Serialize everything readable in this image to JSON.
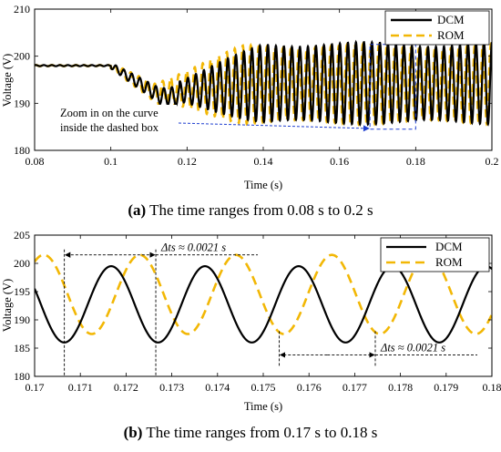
{
  "colors": {
    "dcm": "#000000",
    "rom": "#F2B705",
    "annotation": "#1f3fd0"
  },
  "chart_data": [
    {
      "type": "line",
      "xlabel": "Time (s)",
      "ylabel": "Voltage (V)",
      "xlim": [
        0.08,
        0.2
      ],
      "ylim": [
        180,
        210
      ],
      "xticks": [
        "0.08",
        "0.1",
        "0.12",
        "0.14",
        "0.16",
        "0.18",
        "0.2"
      ],
      "yticks": [
        "180",
        "190",
        "200",
        "210"
      ],
      "legend_position": "top-right",
      "series": [
        {
          "name": "DCM",
          "style": "solid",
          "color": "#000000",
          "description_points": [
            [
              0.08,
              198
            ],
            [
              0.1,
              198
            ],
            [
              0.11,
              193
            ],
            [
              0.12,
              191
            ],
            [
              0.13,
              193
            ],
            [
              0.14,
              202.5
            ],
            [
              0.16,
              201
            ],
            [
              0.2,
              199
            ]
          ],
          "oscillation": {
            "period_s": 0.0021,
            "envelope_min": 186,
            "envelope_max": 202.5,
            "start_s": 0.118
          }
        },
        {
          "name": "ROM",
          "style": "dashed",
          "color": "#F2B705",
          "description_points": [
            [
              0.08,
              198
            ],
            [
              0.1,
              198
            ],
            [
              0.11,
              193
            ],
            [
              0.12,
              191
            ],
            [
              0.13,
              199
            ],
            [
              0.14,
              202
            ],
            [
              0.16,
              201
            ],
            [
              0.2,
              199
            ]
          ],
          "oscillation": {
            "period_s": 0.0021,
            "envelope_min": 186,
            "envelope_max": 202,
            "start_s": 0.113
          }
        }
      ],
      "annotations": [
        {
          "text_line1": "Zoom in on the curve",
          "text_line2": "inside the dashed box",
          "box_x": [
            0.168,
            0.18
          ],
          "box_y": [
            184.5,
            202.5
          ]
        }
      ],
      "caption_label": "(a)",
      "caption_text": " The time ranges from 0.08 s to 0.2 s"
    },
    {
      "type": "line",
      "xlabel": "Time (s)",
      "ylabel": "Voltage (V)",
      "xlim": [
        0.17,
        0.18
      ],
      "ylim": [
        180,
        205
      ],
      "xticks": [
        "0.17",
        "0.171",
        "0.172",
        "0.173",
        "0.174",
        "0.175",
        "0.176",
        "0.177",
        "0.178",
        "0.179",
        "0.18"
      ],
      "yticks": [
        "180",
        "185",
        "190",
        "195",
        "200",
        "205"
      ],
      "legend_position": "top-right",
      "series": [
        {
          "name": "DCM",
          "style": "solid",
          "color": "#000000",
          "min": 186,
          "max": 199.5,
          "period_s": 0.00205,
          "trough_t": [
            0.17065,
            0.17265,
            0.1747,
            0.17675,
            0.1788
          ]
        },
        {
          "name": "ROM",
          "style": "dashed",
          "color": "#F2B705",
          "min": 187.5,
          "max": 201.5,
          "period_s": 0.0021,
          "trough_t": [
            0.17125,
            0.1734,
            0.1755,
            0.1776,
            0.1797
          ]
        }
      ],
      "annotations": [
        {
          "label": "Δts ≈ 0.0021 s",
          "t_start": 0.17065,
          "t_end": 0.17265,
          "y": 201.5
        },
        {
          "label": "Δts ≈ 0.0021 s",
          "t_start": 0.17535,
          "t_end": 0.17745,
          "y": 183.8
        }
      ],
      "caption_label": "(b)",
      "caption_text": " The time ranges from 0.17 s to 0.18 s"
    }
  ]
}
